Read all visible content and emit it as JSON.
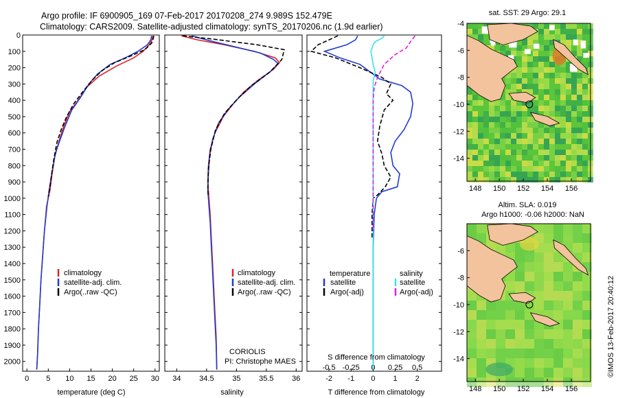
{
  "header": {
    "line1": "Argo profile: IF 6900905_169 07-Feb-2017 20170208_274 9.989S 152.479E",
    "line2": "Climatology: CARS2009. Satellite-adjusted climatology: synTS_20170206.nc (1.9d earlier)"
  },
  "colors": {
    "climatology": "#e02020",
    "satellite": "#1e3cd2",
    "argo": "#000000",
    "sat_s": "#33e3ef",
    "argo_s": "#e020e0"
  },
  "chart_data": [
    {
      "type": "line",
      "panel": "temperature",
      "xlabel": "temperature (deg C)",
      "ylabel": "",
      "xlim": [
        -1,
        31
      ],
      "ylim": [
        2060,
        0
      ],
      "xticks": [
        0,
        5,
        10,
        15,
        20,
        25,
        30
      ],
      "yticks": [
        0,
        100,
        200,
        300,
        400,
        500,
        600,
        700,
        800,
        900,
        1000,
        1100,
        1200,
        1300,
        1400,
        1500,
        1600,
        1700,
        1800,
        1900,
        2000
      ],
      "legend": [
        "climatology",
        "satellite-adj. clim.",
        "Argo(..raw -QC)"
      ],
      "series": [
        {
          "name": "climatology",
          "color": "#e02020",
          "dash": "",
          "points": [
            [
              29.5,
              5
            ],
            [
              29.3,
              30
            ],
            [
              28.6,
              60
            ],
            [
              27.2,
              100
            ],
            [
              25,
              140
            ],
            [
              21,
              190
            ],
            [
              17,
              250
            ],
            [
              14,
              320
            ],
            [
              12,
              400
            ],
            [
              10,
              470
            ],
            [
              8.6,
              560
            ],
            [
              7.5,
              650
            ],
            [
              6.5,
              750
            ],
            [
              5.9,
              850
            ],
            [
              5.4,
              950
            ],
            [
              4.6,
              1050
            ],
            [
              4.1,
              1200
            ],
            [
              3.7,
              1350
            ],
            [
              3.3,
              1500
            ],
            [
              3,
              1650
            ],
            [
              2.7,
              1800
            ],
            [
              2.5,
              1950
            ],
            [
              2.3,
              2050
            ]
          ]
        },
        {
          "name": "satellite-adj. clim.",
          "color": "#1e3cd2",
          "dash": "",
          "points": [
            [
              29.2,
              5
            ],
            [
              29,
              30
            ],
            [
              28.2,
              60
            ],
            [
              26,
              100
            ],
            [
              23,
              140
            ],
            [
              19.5,
              180
            ],
            [
              16.5,
              240
            ],
            [
              14.5,
              300
            ],
            [
              12.6,
              380
            ],
            [
              10.5,
              460
            ],
            [
              8.9,
              560
            ],
            [
              7.8,
              640
            ],
            [
              6.7,
              720
            ],
            [
              5.8,
              850
            ],
            [
              5.2,
              950
            ],
            [
              4.7,
              1050
            ],
            [
              4.1,
              1200
            ],
            [
              3.7,
              1350
            ],
            [
              3.3,
              1500
            ],
            [
              3,
              1650
            ],
            [
              2.7,
              1800
            ],
            [
              2.5,
              1950
            ],
            [
              2.3,
              2050
            ]
          ]
        },
        {
          "name": "Argo(..raw -QC)",
          "color": "#000000",
          "dash": "6,3",
          "points": [
            [
              29.7,
              5
            ],
            [
              29.6,
              20
            ],
            [
              29.2,
              50
            ],
            [
              27.6,
              90
            ],
            [
              24.2,
              130
            ],
            [
              20.5,
              170
            ],
            [
              17.5,
              220
            ],
            [
              15.2,
              280
            ],
            [
              13,
              350
            ],
            [
              11,
              420
            ],
            [
              9.3,
              500
            ],
            [
              8,
              580
            ],
            [
              7,
              660
            ],
            [
              6.3,
              760
            ],
            [
              5.8,
              850
            ],
            [
              5.4,
              930
            ],
            [
              5,
              990
            ]
          ]
        }
      ]
    },
    {
      "type": "line",
      "panel": "salinity",
      "xlabel": "salinity",
      "ylabel": "",
      "xlim": [
        33.8,
        36.1
      ],
      "ylim": [
        2060,
        0
      ],
      "xticks": [
        34,
        34.5,
        35,
        35.5,
        36
      ],
      "legend": [
        "climatology",
        "satellite-adj. clim.",
        "Argo(..raw -QC)"
      ],
      "annotation": [
        "CORIOLIS",
        "PI: Christophe MAES"
      ],
      "series": [
        {
          "name": "climatology",
          "color": "#e02020",
          "dash": "",
          "points": [
            [
              34.08,
              5
            ],
            [
              34.35,
              30
            ],
            [
              34.8,
              60
            ],
            [
              35.3,
              100
            ],
            [
              35.65,
              140
            ],
            [
              35.72,
              170
            ],
            [
              35.62,
              210
            ],
            [
              35.35,
              280
            ],
            [
              35.12,
              350
            ],
            [
              34.95,
              420
            ],
            [
              34.78,
              500
            ],
            [
              34.64,
              600
            ],
            [
              34.56,
              700
            ],
            [
              34.53,
              800
            ],
            [
              34.52,
              900
            ],
            [
              34.54,
              1000
            ],
            [
              34.56,
              1100
            ],
            [
              34.58,
              1250
            ],
            [
              34.6,
              1400
            ],
            [
              34.62,
              1550
            ],
            [
              34.64,
              1700
            ],
            [
              34.66,
              1850
            ],
            [
              34.67,
              2050
            ]
          ]
        },
        {
          "name": "satellite-adj. clim.",
          "color": "#1e3cd2",
          "dash": "",
          "points": [
            [
              34.25,
              5
            ],
            [
              34.55,
              35
            ],
            [
              34.95,
              70
            ],
            [
              35.4,
              110
            ],
            [
              35.62,
              150
            ],
            [
              35.7,
              175
            ],
            [
              35.58,
              220
            ],
            [
              35.3,
              300
            ],
            [
              35.05,
              380
            ],
            [
              34.85,
              460
            ],
            [
              34.7,
              540
            ],
            [
              34.6,
              640
            ],
            [
              34.55,
              740
            ],
            [
              34.53,
              850
            ],
            [
              34.52,
              950
            ],
            [
              34.54,
              1050
            ],
            [
              34.56,
              1150
            ],
            [
              34.58,
              1300
            ],
            [
              34.6,
              1450
            ],
            [
              34.62,
              1600
            ],
            [
              34.64,
              1750
            ],
            [
              34.66,
              1900
            ],
            [
              34.67,
              2050
            ]
          ]
        },
        {
          "name": "Argo(..raw -QC)",
          "color": "#000000",
          "dash": "6,3",
          "points": [
            [
              34.1,
              5
            ],
            [
              34.6,
              25
            ],
            [
              35.35,
              60
            ],
            [
              35.8,
              90
            ],
            [
              35.76,
              150
            ],
            [
              35.55,
              230
            ],
            [
              35.25,
              310
            ],
            [
              35.02,
              390
            ],
            [
              34.8,
              480
            ],
            [
              34.65,
              580
            ],
            [
              34.57,
              700
            ],
            [
              34.53,
              820
            ],
            [
              34.52,
              950
            ],
            [
              34.53,
              990
            ]
          ]
        }
      ]
    },
    {
      "type": "line",
      "panel": "difference",
      "xlabel": "T difference from climatology",
      "xlabel_top": "S difference from climatology",
      "ylabel": "",
      "xlim": [
        -3,
        3.1
      ],
      "ylim": [
        2060,
        0
      ],
      "xticks": [
        -2,
        -1,
        0,
        1,
        2
      ],
      "xticks_s": [
        -0.5,
        -0.25,
        0,
        0.25,
        0.5
      ],
      "legend_t": {
        "title": "temperature",
        "items": [
          "satellite",
          "Argo(-adj)"
        ]
      },
      "legend_s": {
        "title": "salinity",
        "items": [
          "satellite",
          "Argo(-adj)"
        ]
      },
      "series": [
        {
          "name": "satellite",
          "color": "#1e3cd2",
          "dash": "",
          "points": [
            [
              -0.7,
              5
            ],
            [
              -0.8,
              30
            ],
            [
              -1.2,
              60
            ],
            [
              -2.2,
              100
            ],
            [
              -1.5,
              140
            ],
            [
              -0.6,
              180
            ],
            [
              -0.2,
              220
            ],
            [
              0.3,
              270
            ],
            [
              1.3,
              310
            ],
            [
              1.7,
              350
            ],
            [
              1.8,
              420
            ],
            [
              1.7,
              500
            ],
            [
              1.4,
              580
            ],
            [
              1.0,
              650
            ],
            [
              0.8,
              720
            ],
            [
              0.9,
              800
            ],
            [
              1.2,
              850
            ],
            [
              1.1,
              930
            ],
            [
              0.4,
              960
            ],
            [
              0.15,
              1000
            ],
            [
              0.05,
              1100
            ],
            [
              0,
              1300
            ],
            [
              0,
              2050
            ]
          ]
        },
        {
          "name": "Argo(-adj)",
          "color": "#000000",
          "dash": "6,3",
          "points": [
            [
              -1.6,
              5
            ],
            [
              -2,
              30
            ],
            [
              -2.5,
              60
            ],
            [
              -2.8,
              100
            ],
            [
              -1.7,
              140
            ],
            [
              -0.6,
              200
            ],
            [
              0.4,
              260
            ],
            [
              0.8,
              300
            ],
            [
              0.6,
              360
            ],
            [
              0.9,
              400
            ],
            [
              0.5,
              460
            ],
            [
              0.3,
              560
            ],
            [
              0.2,
              650
            ],
            [
              0.4,
              730
            ],
            [
              0.5,
              800
            ],
            [
              0.8,
              870
            ],
            [
              0.55,
              930
            ],
            [
              0.2,
              980
            ],
            [
              0,
              1000
            ],
            [
              -0.05,
              1100
            ],
            [
              -0.05,
              1250
            ]
          ]
        },
        {
          "name": "satellite",
          "color": "#33e3ef",
          "dash": "",
          "points": [
            [
              0.5,
              5
            ],
            [
              0.4,
              20
            ],
            [
              0.1,
              40
            ],
            [
              0,
              60
            ],
            [
              -0.1,
              100
            ],
            [
              0,
              180
            ],
            [
              0.1,
              230
            ],
            [
              0,
              280
            ],
            [
              0,
              400
            ],
            [
              0,
              600
            ],
            [
              0,
              800
            ],
            [
              0,
              1000
            ],
            [
              0,
              1200
            ],
            [
              0,
              1500
            ],
            [
              0,
              1800
            ],
            [
              0,
              2050
            ]
          ]
        },
        {
          "name": "Argo(-adj)",
          "color": "#e020e0",
          "dash": "6,3",
          "points": [
            [
              1.9,
              5
            ],
            [
              1.7,
              40
            ],
            [
              1.5,
              80
            ],
            [
              1.0,
              120
            ],
            [
              0.5,
              180
            ],
            [
              0.2,
              260
            ],
            [
              0.05,
              320
            ],
            [
              0,
              400
            ],
            [
              0,
              600
            ],
            [
              0,
              800
            ],
            [
              0,
              1000
            ],
            [
              0,
              1200
            ]
          ]
        }
      ]
    },
    {
      "type": "heatmap",
      "panel": "sat-sst-map",
      "title": "sat. SST: 29 Argo: 29.1",
      "xlim": [
        147.3,
        157.6
      ],
      "ylim": [
        -15.7,
        -4
      ],
      "xticks": [
        148,
        150,
        152,
        154,
        156
      ],
      "yticks": [
        -4,
        -6,
        -8,
        -10,
        -12,
        -14
      ],
      "marker": {
        "lon": 152.5,
        "lat": -10
      }
    },
    {
      "type": "heatmap",
      "panel": "sla-map",
      "title": "Altim. SLA: 0.019",
      "subtitle": "Argo h1000: -0.06 h2000: NaN",
      "xlim": [
        147.3,
        157.6
      ],
      "ylim": [
        -15.7,
        -4
      ],
      "xticks": [
        148,
        150,
        152,
        154,
        156
      ],
      "yticks": [
        -6,
        -8,
        -10,
        -12,
        -14
      ],
      "marker": {
        "lon": 152.5,
        "lat": -10
      }
    }
  ],
  "profile_labels": {
    "leg_clim": "climatology",
    "leg_sat": "satellite-adj. clim.",
    "leg_argo": "Argo(..raw -QC)",
    "annot1": "CORIOLIS",
    "annot2": "PI: Christophe MAES",
    "diff_leg_t": "temperature",
    "diff_leg_s": "salinity",
    "diff_sat": "satellite",
    "diff_argo": "Argo(-adj)"
  },
  "credit": "©IMOS 13-Feb-2017 20:40:12"
}
